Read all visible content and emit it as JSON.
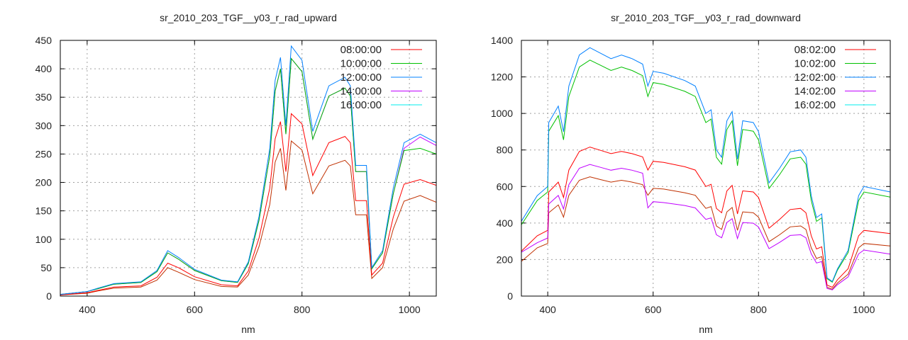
{
  "chart_data": [
    {
      "type": "line",
      "title": "sr_2010_203_TGF__y03_r_rad_upward",
      "xlabel": "nm",
      "ylabel": "",
      "xlim": [
        350,
        1050
      ],
      "ylim": [
        0,
        450
      ],
      "xticks": [
        400,
        600,
        800,
        1000
      ],
      "yticks": [
        0,
        50,
        100,
        150,
        200,
        250,
        300,
        350,
        400,
        450
      ],
      "grid": true,
      "legend": "top-right",
      "x": [
        350,
        400,
        420,
        450,
        500,
        530,
        550,
        570,
        600,
        650,
        680,
        700,
        720,
        740,
        750,
        760,
        770,
        780,
        800,
        820,
        850,
        880,
        890,
        900,
        920,
        930,
        950,
        970,
        990,
        1020,
        1050
      ],
      "series": [
        {
          "name": "08:00:00",
          "legend_color": "#ff0000",
          "line_color": "#ff0000",
          "values": [
            2,
            6,
            10,
            16,
            18,
            33,
            58,
            50,
            34,
            20,
            18,
            44,
            102,
            190,
            277,
            307,
            219,
            321,
            303,
            212,
            270,
            281,
            270,
            168,
            168,
            37,
            58,
            139,
            197,
            205,
            195
          ]
        },
        {
          "name": "10:00:00",
          "legend_color": "#00c000",
          "line_color": "#00c000",
          "values": [
            3,
            8,
            13,
            21,
            24,
            43,
            76,
            65,
            45,
            27,
            24,
            57,
            133,
            247,
            361,
            400,
            285,
            418,
            395,
            276,
            352,
            366,
            352,
            219,
            219,
            48,
            76,
            180,
            256,
            260,
            250
          ]
        },
        {
          "name": "12:00:00",
          "legend_color": "#0080ff",
          "line_color": "#0080ff",
          "values": [
            3,
            8,
            14,
            22,
            25,
            45,
            80,
            68,
            47,
            28,
            25,
            60,
            140,
            260,
            380,
            420,
            300,
            440,
            415,
            290,
            370,
            385,
            370,
            230,
            230,
            50,
            80,
            190,
            270,
            285,
            270
          ]
        },
        {
          "name": "14:00:00",
          "legend_color": "#c000ff",
          "line_color": "#c000ff",
          "values": [
            3,
            8,
            13,
            21,
            24,
            43,
            76,
            65,
            45,
            27,
            24,
            57,
            133,
            247,
            361,
            400,
            285,
            418,
            395,
            276,
            352,
            366,
            352,
            219,
            219,
            48,
            76,
            180,
            260,
            280,
            265
          ]
        },
        {
          "name": "16:00:00",
          "legend_color": "#00eeee",
          "line_color": "#c03000",
          "values": [
            2,
            5,
            9,
            14,
            16,
            28,
            50,
            42,
            29,
            17,
            16,
            37,
            87,
            161,
            236,
            260,
            186,
            273,
            257,
            180,
            229,
            239,
            229,
            143,
            143,
            31,
            50,
            118,
            167,
            177,
            165
          ]
        }
      ]
    },
    {
      "type": "line",
      "title": "sr_2010_203_TGF__y03_r_rad_downward",
      "xlabel": "nm",
      "ylabel": "",
      "xlim": [
        350,
        1050
      ],
      "ylim": [
        0,
        1400
      ],
      "xticks": [
        400,
        600,
        800,
        1000
      ],
      "yticks": [
        0,
        200,
        400,
        600,
        800,
        1000,
        1200,
        1400
      ],
      "grid": true,
      "legend": "top-right",
      "x": [
        350,
        380,
        400,
        402,
        420,
        430,
        440,
        460,
        480,
        500,
        520,
        540,
        560,
        580,
        590,
        600,
        620,
        660,
        680,
        700,
        710,
        720,
        730,
        740,
        750,
        760,
        770,
        790,
        800,
        820,
        840,
        860,
        880,
        890,
        900,
        910,
        920,
        930,
        940,
        950,
        970,
        990,
        1000,
        1050
      ],
      "series": [
        {
          "name": "08:02:00",
          "legend_color": "#ff0000",
          "line_color": "#ff0000",
          "values": [
            246,
            330,
            360,
            570,
            624,
            540,
            690,
            792,
            816,
            798,
            780,
            792,
            780,
            762,
            690,
            738,
            732,
            708,
            690,
            600,
            612,
            480,
            456,
            576,
            606,
            450,
            576,
            570,
            540,
            372,
            420,
            474,
            480,
            456,
            330,
            258,
            270,
            60,
            48,
            90,
            150,
            330,
            360,
            342
          ]
        },
        {
          "name": "10:02:00",
          "legend_color": "#00c000",
          "line_color": "#00c000",
          "values": [
            390,
            523,
            570,
            903,
            988,
            855,
            1093,
            1254,
            1292,
            1264,
            1235,
            1254,
            1235,
            1207,
            1093,
            1169,
            1159,
            1121,
            1093,
            950,
            969,
            760,
            722,
            912,
            960,
            713,
            912,
            903,
            855,
            589,
            665,
            751,
            760,
            722,
            523,
            409,
            428,
            95,
            76,
            143,
            238,
            523,
            570,
            542
          ]
        },
        {
          "name": "12:02:00",
          "legend_color": "#0080ff",
          "line_color": "#0080ff",
          "values": [
            410,
            550,
            600,
            950,
            1040,
            900,
            1150,
            1320,
            1360,
            1330,
            1300,
            1320,
            1300,
            1270,
            1150,
            1230,
            1220,
            1180,
            1150,
            1000,
            1020,
            800,
            760,
            960,
            1010,
            750,
            960,
            950,
            900,
            620,
            700,
            790,
            800,
            760,
            550,
            430,
            450,
            100,
            80,
            150,
            250,
            550,
            600,
            570
          ]
        },
        {
          "name": "14:02:00",
          "legend_color": "#c000ff",
          "line_color": "#c000ff",
          "values": [
            240,
            292,
            318,
            504,
            551,
            477,
            610,
            700,
            721,
            705,
            689,
            700,
            689,
            673,
            483,
            517,
            512,
            496,
            483,
            420,
            428,
            336,
            319,
            403,
            424,
            315,
            403,
            399,
            378,
            260,
            294,
            332,
            336,
            319,
            231,
            181,
            189,
            42,
            34,
            63,
            105,
            231,
            252,
            230
          ]
        },
        {
          "name": "16:02:00",
          "legend_color": "#00eeee",
          "line_color": "#c03000",
          "values": [
            190,
            264,
            288,
            456,
            499,
            432,
            552,
            634,
            653,
            638,
            624,
            634,
            624,
            610,
            552,
            590,
            586,
            566,
            552,
            480,
            490,
            384,
            365,
            461,
            485,
            360,
            461,
            456,
            432,
            298,
            336,
            379,
            384,
            365,
            264,
            206,
            216,
            48,
            38,
            72,
            120,
            264,
            288,
            274
          ]
        }
      ]
    }
  ]
}
